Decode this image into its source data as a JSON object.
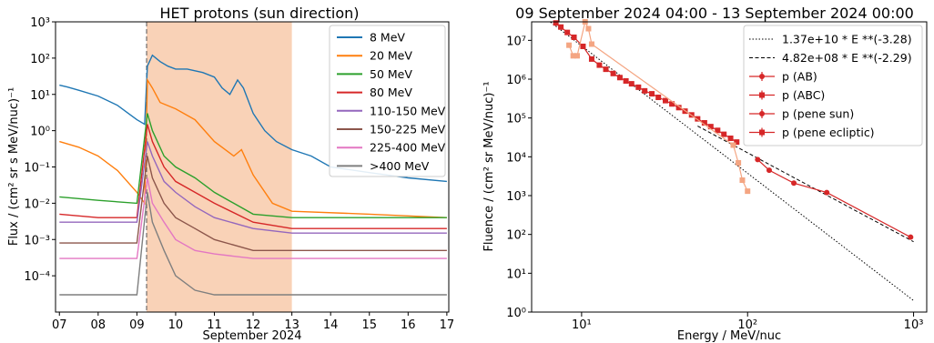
{
  "chart_data": [
    {
      "type": "line",
      "title": "HET protons (sun direction)",
      "xlabel": "September 2024",
      "ylabel": "Flux / (cm² sr s MeV/nuc)⁻¹",
      "y_scale": "log",
      "xlim": [
        6.9,
        17.05
      ],
      "ylim": [
        1e-05,
        1000
      ],
      "x_ticks": [
        "07",
        "08",
        "09",
        "10",
        "11",
        "12",
        "13",
        "14",
        "15",
        "16",
        "17"
      ],
      "y_ticks": [
        "10⁻⁴",
        "10⁻³",
        "10⁻²",
        "10⁻¹",
        "10⁰",
        "10¹",
        "10²",
        "10³"
      ],
      "shaded_interval": [
        9.25,
        13.0
      ],
      "vertical_line_x": 9.25,
      "legend_position": "upper right",
      "series": [
        {
          "name": "8 MeV",
          "color": "#1f77b4",
          "points": [
            [
              7.0,
              18
            ],
            [
              7.2,
              16
            ],
            [
              7.5,
              13
            ],
            [
              8.0,
              9
            ],
            [
              8.5,
              5
            ],
            [
              9.0,
              2
            ],
            [
              9.2,
              1.5
            ],
            [
              9.27,
              60
            ],
            [
              9.4,
              120
            ],
            [
              9.6,
              80
            ],
            [
              9.8,
              60
            ],
            [
              10.0,
              50
            ],
            [
              10.3,
              50
            ],
            [
              10.7,
              40
            ],
            [
              11.0,
              30
            ],
            [
              11.2,
              15
            ],
            [
              11.4,
              10
            ],
            [
              11.6,
              25
            ],
            [
              11.75,
              15
            ],
            [
              12.0,
              3
            ],
            [
              12.3,
              1
            ],
            [
              12.6,
              0.5
            ],
            [
              13.0,
              0.3
            ],
            [
              13.5,
              0.2
            ],
            [
              14.0,
              0.1
            ],
            [
              15.0,
              0.07
            ],
            [
              16.0,
              0.05
            ],
            [
              17.0,
              0.04
            ]
          ]
        },
        {
          "name": "20 MeV",
          "color": "#ff7f0e",
          "points": [
            [
              7.0,
              0.5
            ],
            [
              7.5,
              0.35
            ],
            [
              8.0,
              0.2
            ],
            [
              8.5,
              0.08
            ],
            [
              9.0,
              0.02
            ],
            [
              9.2,
              0.01
            ],
            [
              9.27,
              25
            ],
            [
              9.4,
              15
            ],
            [
              9.6,
              6
            ],
            [
              10.0,
              4
            ],
            [
              10.5,
              2
            ],
            [
              11.0,
              0.5
            ],
            [
              11.5,
              0.2
            ],
            [
              11.7,
              0.3
            ],
            [
              12.0,
              0.06
            ],
            [
              12.5,
              0.01
            ],
            [
              13.0,
              0.006
            ],
            [
              15.0,
              0.005
            ],
            [
              17.0,
              0.004
            ]
          ]
        },
        {
          "name": "50 MeV",
          "color": "#2ca02c",
          "points": [
            [
              7.0,
              0.015
            ],
            [
              8.0,
              0.012
            ],
            [
              9.0,
              0.01
            ],
            [
              9.27,
              3
            ],
            [
              9.4,
              1
            ],
            [
              9.7,
              0.2
            ],
            [
              10.0,
              0.1
            ],
            [
              10.5,
              0.05
            ],
            [
              11.0,
              0.02
            ],
            [
              12.0,
              0.005
            ],
            [
              13.0,
              0.004
            ],
            [
              17.0,
              0.004
            ]
          ]
        },
        {
          "name": "80 MeV",
          "color": "#d62728",
          "points": [
            [
              7.0,
              0.005
            ],
            [
              8.0,
              0.004
            ],
            [
              9.0,
              0.004
            ],
            [
              9.27,
              1.5
            ],
            [
              9.4,
              0.5
            ],
            [
              9.7,
              0.1
            ],
            [
              10.0,
              0.04
            ],
            [
              10.5,
              0.02
            ],
            [
              11.0,
              0.01
            ],
            [
              12.0,
              0.003
            ],
            [
              13.0,
              0.002
            ],
            [
              17.0,
              0.002
            ]
          ]
        },
        {
          "name": "110-150 MeV",
          "color": "#9467bd",
          "points": [
            [
              7.0,
              0.003
            ],
            [
              8.0,
              0.003
            ],
            [
              9.0,
              0.003
            ],
            [
              9.27,
              0.5
            ],
            [
              9.4,
              0.2
            ],
            [
              9.7,
              0.04
            ],
            [
              10.0,
              0.02
            ],
            [
              10.5,
              0.008
            ],
            [
              11.0,
              0.004
            ],
            [
              12.0,
              0.002
            ],
            [
              13.0,
              0.0015
            ],
            [
              17.0,
              0.0015
            ]
          ]
        },
        {
          "name": "150-225 MeV",
          "color": "#8c564b",
          "points": [
            [
              7.0,
              0.0008
            ],
            [
              8.0,
              0.0008
            ],
            [
              9.0,
              0.0008
            ],
            [
              9.27,
              0.2
            ],
            [
              9.4,
              0.05
            ],
            [
              9.7,
              0.01
            ],
            [
              10.0,
              0.004
            ],
            [
              10.5,
              0.002
            ],
            [
              11.0,
              0.001
            ],
            [
              12.0,
              0.0005
            ],
            [
              17.0,
              0.0005
            ]
          ]
        },
        {
          "name": "225-400 MeV",
          "color": "#e377c2",
          "points": [
            [
              7.0,
              0.0003
            ],
            [
              8.0,
              0.0003
            ],
            [
              9.0,
              0.0003
            ],
            [
              9.27,
              0.05
            ],
            [
              9.4,
              0.01
            ],
            [
              9.7,
              0.003
            ],
            [
              10.0,
              0.001
            ],
            [
              10.5,
              0.0005
            ],
            [
              11.0,
              0.0004
            ],
            [
              12.0,
              0.0003
            ],
            [
              17.0,
              0.0003
            ]
          ]
        },
        {
          "name": ">400 MeV",
          "color": "#7f7f7f",
          "points": [
            [
              7.0,
              3e-05
            ],
            [
              8.0,
              3e-05
            ],
            [
              9.0,
              3e-05
            ],
            [
              9.27,
              0.02
            ],
            [
              9.4,
              0.003
            ],
            [
              9.7,
              0.0005
            ],
            [
              10.0,
              0.0001
            ],
            [
              10.5,
              4e-05
            ],
            [
              11.0,
              3e-05
            ],
            [
              17.0,
              3e-05
            ]
          ]
        }
      ]
    },
    {
      "type": "scatter",
      "title": "09 September 2024 04:00 - 13 September 2024 00:00",
      "xlabel": "Energy / MeV/nuc",
      "ylabel": "Fluence / (cm² sr MeV/nuc)⁻¹",
      "x_scale": "log",
      "y_scale": "log",
      "xlim": [
        5.0,
        1200
      ],
      "ylim": [
        1,
        30000000
      ],
      "x_ticks": [
        "10¹",
        "10²",
        "10³"
      ],
      "y_ticks": [
        "10⁰",
        "10¹",
        "10²",
        "10³",
        "10⁴",
        "10⁵",
        "10⁶",
        "10⁷"
      ],
      "legend_position": "upper right",
      "series": [
        {
          "name": "1.37e+10 * E **(-3.28)",
          "kind": "fit",
          "style": "dotted",
          "color": "#000000",
          "coef": 13700000000,
          "exponent": -3.28,
          "range": [
            6.5,
            1000
          ]
        },
        {
          "name": "4.82e+08 * E **(-2.29)",
          "kind": "fit",
          "style": "dashed",
          "color": "#000000",
          "coef": 482000000,
          "exponent": -2.29,
          "range": [
            50,
            1000
          ]
        },
        {
          "name": "p (AB)",
          "color": "#d62728",
          "points": [
            [
              7.0,
              28000000
            ],
            [
              7.5,
              22000000
            ],
            [
              8.2,
              16000000
            ],
            [
              9.0,
              12000000
            ],
            [
              10.2,
              7000000
            ],
            [
              11.5,
              3300000
            ],
            [
              12.8,
              2300000
            ],
            [
              14.0,
              1800000
            ],
            [
              15.5,
              1400000
            ],
            [
              17.0,
              1100000
            ],
            [
              18.5,
              900000
            ],
            [
              20.0,
              760000
            ],
            [
              22.0,
              620000
            ],
            [
              24.0,
              500000
            ],
            [
              26.5,
              420000
            ],
            [
              29.0,
              340000
            ],
            [
              32.0,
              280000
            ],
            [
              35.0,
              230000
            ],
            [
              38.5,
              185000
            ],
            [
              42.0,
              150000
            ],
            [
              46.0,
              120000
            ],
            [
              50.0,
              95000
            ],
            [
              55.0,
              75000
            ],
            [
              60.0,
              60000
            ],
            [
              66.0,
              48000
            ],
            [
              72.0,
              38000
            ],
            [
              79.0,
              30000
            ],
            [
              86.0,
              24000
            ]
          ]
        },
        {
          "name": "p (ABC)",
          "color": "#d62728",
          "points": []
        },
        {
          "name": "p (pene sun)",
          "color": "#d62728",
          "points": [
            [
              115,
              8500
            ],
            [
              135,
              4500
            ],
            [
              190,
              2100
            ],
            [
              300,
              1200
            ],
            [
              960,
              85
            ]
          ]
        },
        {
          "name": "p (pene ecliptic)",
          "color": "#d62728",
          "points": []
        },
        {
          "name": "",
          "color": "#f4a582",
          "points": [
            [
              8.4,
              7500000
            ],
            [
              8.9,
              4000000
            ],
            [
              9.4,
              4000000
            ],
            [
              10.5,
              30000000
            ],
            [
              11.0,
              20000000
            ],
            [
              11.5,
              8000000
            ],
            [
              82.0,
              20000
            ],
            [
              88.0,
              7000
            ],
            [
              93.0,
              2500
            ],
            [
              100.0,
              1300
            ]
          ]
        }
      ]
    }
  ]
}
